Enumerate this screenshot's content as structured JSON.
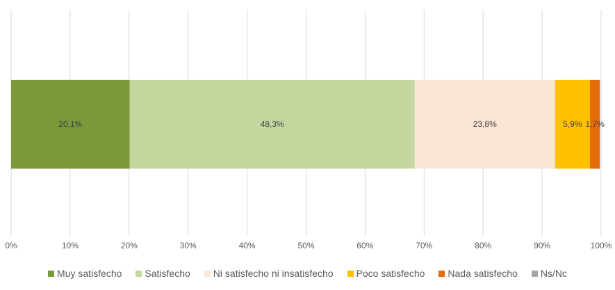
{
  "chart_data": {
    "type": "bar",
    "orientation": "horizontal",
    "stacked": true,
    "title": "",
    "xlabel": "",
    "ylabel": "",
    "xlim": [
      0,
      100
    ],
    "x_ticks": [
      "0%",
      "10%",
      "20%",
      "30%",
      "40%",
      "50%",
      "60%",
      "70%",
      "80%",
      "90%",
      "100%"
    ],
    "grid": "vertical",
    "legend_position": "bottom",
    "categories": [
      ""
    ],
    "series": [
      {
        "name": "Muy satisfecho",
        "values": [
          20.1
        ],
        "label": "20,1%",
        "color": "#7a9a3a"
      },
      {
        "name": "Satisfecho",
        "values": [
          48.3
        ],
        "label": "48,3%",
        "color": "#c4d79f"
      },
      {
        "name": "Ni satisfecho ni insatisfecho",
        "values": [
          23.8
        ],
        "label": "23,8%",
        "color": "#fbe5d6"
      },
      {
        "name": "Poco satisfecho",
        "values": [
          5.9
        ],
        "label": "5,9%",
        "color": "#ffc000"
      },
      {
        "name": "Nada satisfecho",
        "values": [
          1.7
        ],
        "label": "1,7%",
        "color": "#e46c0a"
      },
      {
        "name": "Ns/Nc",
        "values": [
          0
        ],
        "label": "",
        "color": "#a5a5a5"
      }
    ]
  }
}
